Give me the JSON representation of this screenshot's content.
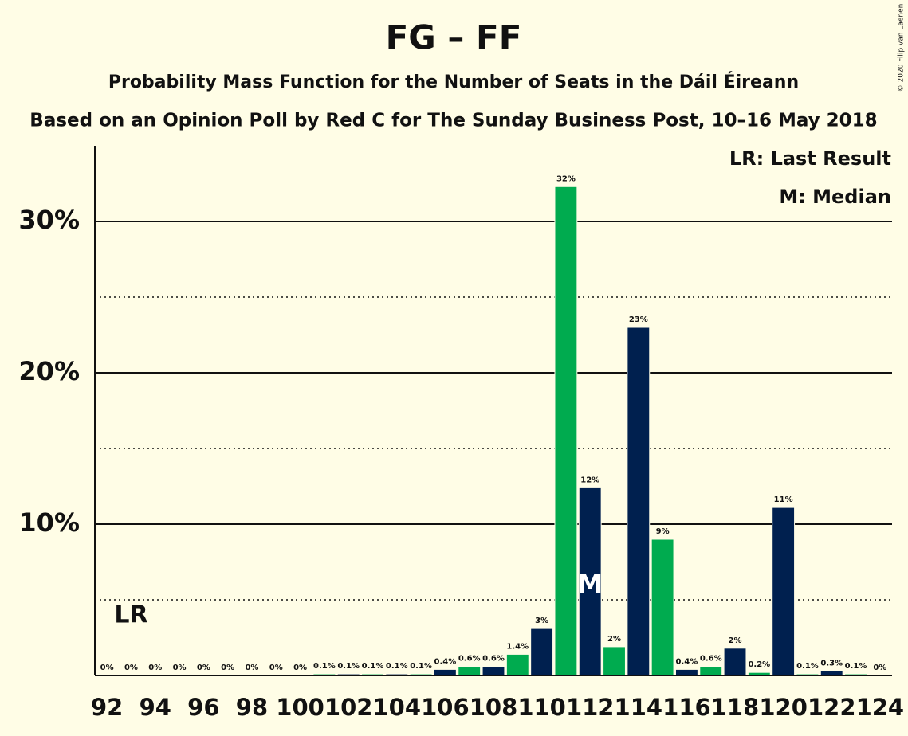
{
  "chart_data": {
    "type": "bar",
    "title": "FG – FF",
    "subtitle": "Probability Mass Function for the Number of Seats in the Dáil Éireann",
    "subtitle2": "Based on an Opinion Poll by Red C for The Sunday Business Post, 10–16 May 2018",
    "copyright": "© 2020 Filip van Laenen",
    "categories": [
      92,
      null,
      94,
      null,
      96,
      null,
      98,
      null,
      100,
      null,
      102,
      null,
      104,
      null,
      106,
      null,
      108,
      null,
      110,
      null,
      112,
      null,
      114,
      null,
      116,
      null,
      118,
      null,
      120,
      null,
      122,
      null,
      124
    ],
    "x": [
      92,
      93,
      94,
      95,
      96,
      97,
      98,
      99,
      100,
      101,
      102,
      103,
      104,
      105,
      106,
      107,
      108,
      109,
      110,
      111,
      112,
      113,
      114,
      115,
      116,
      117,
      118,
      119,
      120,
      121,
      122,
      123,
      124
    ],
    "values": [
      0,
      0,
      0,
      0,
      0,
      0,
      0,
      0,
      0,
      0.1,
      0.1,
      0.1,
      0.1,
      0.1,
      0.4,
      0.6,
      0.6,
      1.4,
      3.1,
      32.3,
      12.4,
      1.9,
      23.0,
      9.0,
      0.4,
      0.6,
      1.8,
      0.2,
      11.1,
      0.1,
      0.3,
      0.1,
      0
    ],
    "value_labels": [
      "0%",
      "0%",
      "0%",
      "0%",
      "0%",
      "0%",
      "0%",
      "0%",
      "0%",
      "0.1%",
      "0.1%",
      "0.1%",
      "0.1%",
      "0.1%",
      "0.4%",
      "0.6%",
      "0.6%",
      "1.4%",
      "3%",
      "32%",
      "12%",
      "2%",
      "23%",
      "9%",
      "0.4%",
      "0.6%",
      "2%",
      "0.2%",
      "11%",
      "0.1%",
      "0.3%",
      "0.1%",
      "0%"
    ],
    "colors": [
      "#00204f",
      "#00ab4f",
      "#00204f",
      "#00ab4f",
      "#00204f",
      "#00ab4f",
      "#00204f",
      "#00ab4f",
      "#00204f",
      "#00ab4f",
      "#00204f",
      "#00ab4f",
      "#00204f",
      "#00ab4f",
      "#00204f",
      "#00ab4f",
      "#00204f",
      "#00ab4f",
      "#00204f",
      "#00ab4f",
      "#00204f",
      "#00ab4f",
      "#00204f",
      "#00ab4f",
      "#00204f",
      "#00ab4f",
      "#00204f",
      "#00ab4f",
      "#00204f",
      "#00ab4f",
      "#00204f",
      "#00ab4f",
      "#00204f"
    ],
    "ylim": [
      0,
      35
    ],
    "yticks": [
      {
        "value": 10,
        "label": "10%"
      },
      {
        "value": 20,
        "label": "20%"
      },
      {
        "value": 30,
        "label": "30%"
      }
    ],
    "minor_yticks": [
      5,
      15,
      25
    ],
    "grid": true,
    "last_result": {
      "label": "LR",
      "x": 93
    },
    "median": {
      "label": "M",
      "x": 112
    },
    "legend": [
      "LR: Last Result",
      "M: Median"
    ]
  }
}
